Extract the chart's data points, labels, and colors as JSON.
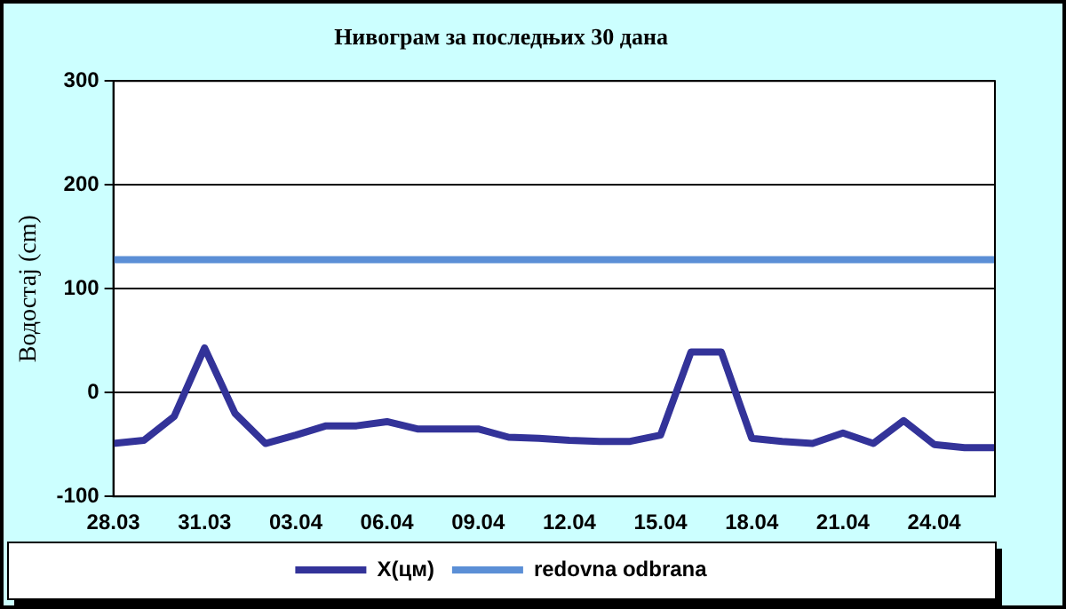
{
  "chart_data": {
    "type": "line",
    "title": "Нивограм за последњих 30 дана",
    "ylabel": "Водостај (cm)",
    "categories": [
      "28.03",
      null,
      null,
      "31.03",
      null,
      null,
      "03.04",
      null,
      null,
      "06.04",
      null,
      null,
      "09.04",
      null,
      null,
      "12.04",
      null,
      null,
      "15.04",
      null,
      null,
      "18.04",
      null,
      null,
      "21.04",
      null,
      null,
      "24.04",
      null,
      null
    ],
    "series": [
      {
        "name": "X(цм)",
        "color": "#333399",
        "values": [
          -49,
          -46,
          -23,
          43,
          -20,
          -49,
          -41,
          -32,
          -32,
          -28,
          -35,
          -35,
          -35,
          -43,
          -44,
          -46,
          -47,
          -47,
          -41,
          39,
          39,
          -44,
          -47,
          -49,
          -39,
          -49,
          -27,
          -50,
          -53,
          -53
        ]
      },
      {
        "name": "redovna odbrana",
        "color": "#5b8fd6",
        "values": [
          128,
          128,
          128,
          128,
          128,
          128,
          128,
          128,
          128,
          128,
          128,
          128,
          128,
          128,
          128,
          128,
          128,
          128,
          128,
          128,
          128,
          128,
          128,
          128,
          128,
          128,
          128,
          128,
          128,
          128
        ]
      }
    ],
    "ylim": [
      -100,
      300
    ],
    "yticks": [
      -100,
      0,
      100,
      200,
      300
    ],
    "grid": "y",
    "legend": "bottom",
    "marker": "none",
    "line_style": "solid"
  }
}
